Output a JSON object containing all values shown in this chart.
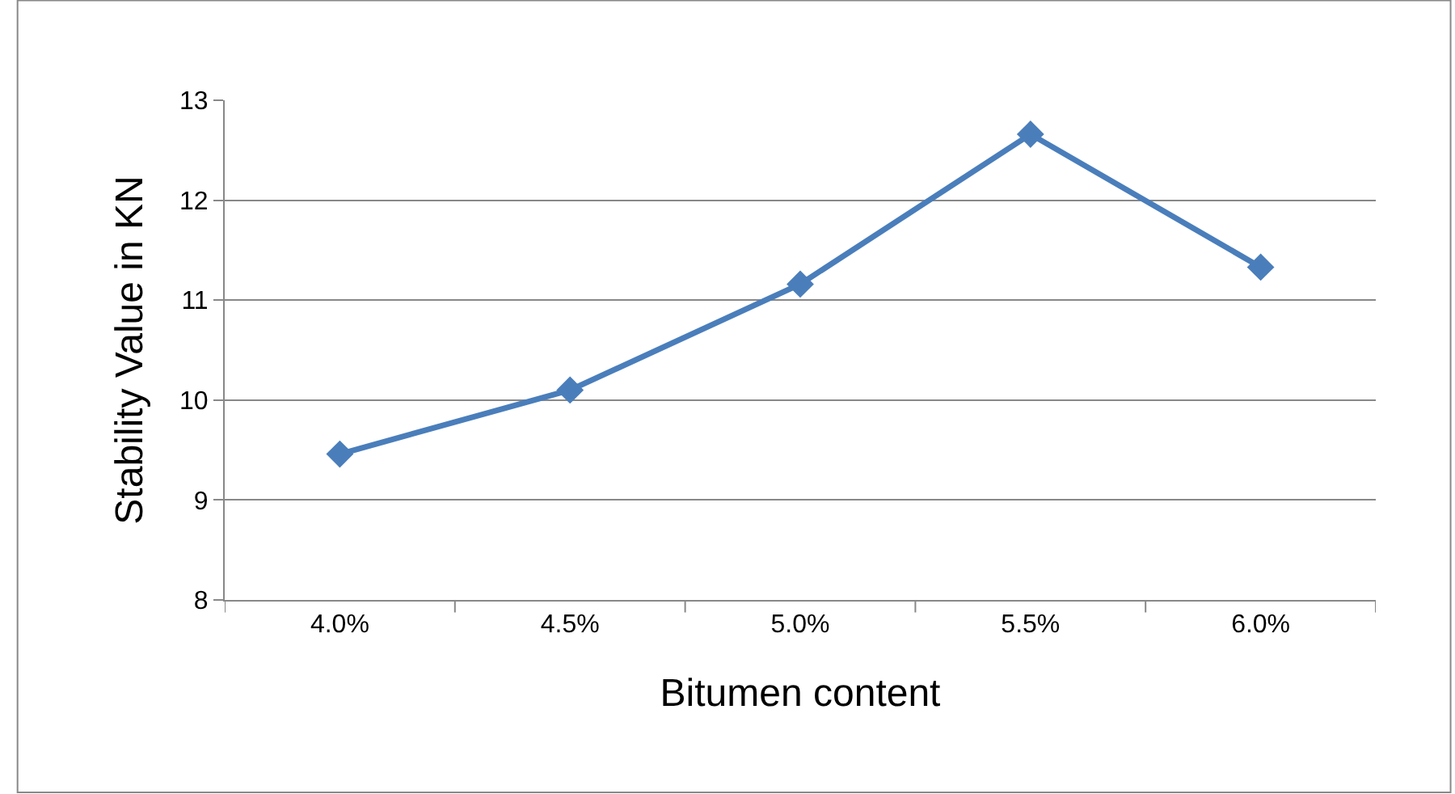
{
  "chart_data": {
    "type": "line",
    "xlabel": "Bitumen content",
    "ylabel": "Stability Value in KN",
    "categories": [
      "4.0%",
      "4.5%",
      "5.0%",
      "5.5%",
      "6.0%"
    ],
    "series": [
      {
        "color": "#4a7ebb",
        "values": [
          9.46,
          10.1,
          11.16,
          12.66,
          11.33
        ]
      }
    ],
    "ylim": [
      8,
      13
    ],
    "yticks": [
      8,
      9,
      10,
      11,
      12,
      13
    ],
    "grid": "y",
    "marker": "diamond",
    "line_style": "solid",
    "legend": false
  }
}
